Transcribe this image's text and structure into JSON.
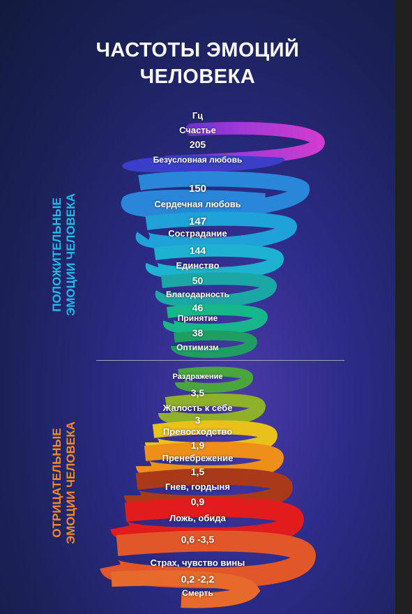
{
  "title_line1": "ЧАСТОТЫ ЭМОЦИЙ",
  "title_line2": "ЧЕЛОВЕКА",
  "unit": "Гц",
  "side_labels": {
    "positive_line1": "ПОЛОЖИТЕЛЬНЫЕ",
    "positive_line2": "ЭМОЦИИ ЧЕЛОВЕКА",
    "negative_line1": "ОТРИЦАТЕЛЬНЫЕ",
    "negative_line2": "ЭМОЦИИ ЧЕЛОВЕКА"
  },
  "positive": [
    {
      "emotion": "Счастье",
      "value": "205"
    },
    {
      "emotion": "Безусловная любовь",
      "value": "150"
    },
    {
      "emotion": "Сердечная любовь",
      "value": "147"
    },
    {
      "emotion": "Сострадание",
      "value": "144"
    },
    {
      "emotion": "Единство",
      "value": "50"
    },
    {
      "emotion": "Благодарность",
      "value": "46"
    },
    {
      "emotion": "Принятие",
      "value": "38"
    },
    {
      "emotion": "Оптимизм",
      "value": ""
    }
  ],
  "negative": [
    {
      "emotion": "Раздражение",
      "value": "3,5"
    },
    {
      "emotion": "Жалость к себе",
      "value": "3"
    },
    {
      "emotion": "Превосходство",
      "value": "1,9"
    },
    {
      "emotion": "Пренебрежение",
      "value": "1,5"
    },
    {
      "emotion": "Гнев, гордыня",
      "value": "0,9"
    },
    {
      "emotion": "Ложь, обида",
      "value": "0,6 -3,5"
    },
    {
      "emotion": "Страх, чувство вины",
      "value": "0,2 -2,2"
    },
    {
      "emotion": "Смерть",
      "value": ""
    }
  ],
  "colors": {
    "positive_label": "#22b8e8",
    "negative_label": "#f08a2a"
  }
}
